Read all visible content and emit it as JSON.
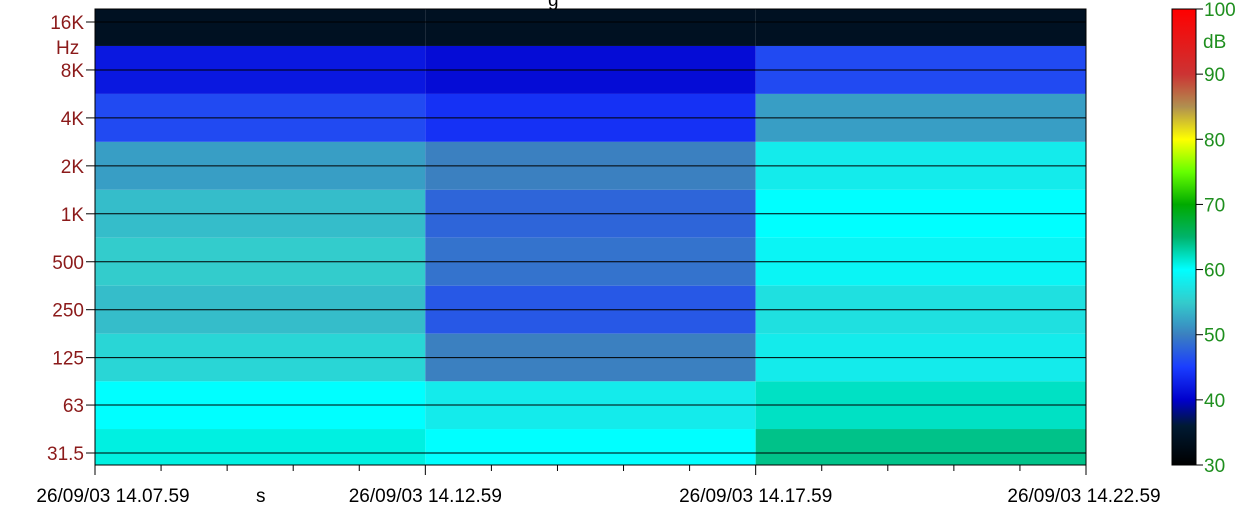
{
  "chart_data": {
    "type": "heatmap",
    "title": "g",
    "y_axis": {
      "unit_label": "Hz",
      "tick_labels": [
        "16K",
        "8K",
        "4K",
        "2K",
        "1K",
        "500",
        "250",
        "125",
        "63",
        "31.5"
      ],
      "tick_values_hz": [
        16000,
        8000,
        4000,
        2000,
        1000,
        500,
        250,
        125,
        63,
        31.5
      ],
      "scale": "log"
    },
    "x_axis": {
      "tick_labels": [
        "26/09/03 14.07.59",
        "26/09/03 14.12.59",
        "26/09/03 14.17.59",
        "26/09/03 14.22.59"
      ],
      "minor_label": "s",
      "range": [
        "26/09/03 14.07.59",
        "26/09/03 14.22.59"
      ]
    },
    "colorbar": {
      "unit": "dB",
      "range": [
        30,
        100
      ],
      "tick_labels": [
        "100",
        "90",
        "80",
        "70",
        "60",
        "50",
        "40",
        "30"
      ],
      "tick_values": [
        100,
        90,
        80,
        70,
        60,
        50,
        40,
        30
      ],
      "stops": [
        {
          "value": 30,
          "color": "#000000"
        },
        {
          "value": 36,
          "color": "#001a33"
        },
        {
          "value": 40,
          "color": "#0000cc"
        },
        {
          "value": 45,
          "color": "#1a3dff"
        },
        {
          "value": 50,
          "color": "#3b80c0"
        },
        {
          "value": 55,
          "color": "#33cccc"
        },
        {
          "value": 60,
          "color": "#00ffff"
        },
        {
          "value": 65,
          "color": "#00b36b"
        },
        {
          "value": 70,
          "color": "#00aa00"
        },
        {
          "value": 75,
          "color": "#66ff00"
        },
        {
          "value": 80,
          "color": "#ffff00"
        },
        {
          "value": 85,
          "color": "#b09050"
        },
        {
          "value": 90,
          "color": "#cc3333"
        },
        {
          "value": 100,
          "color": "#ff0000"
        }
      ]
    },
    "grid": true,
    "approx_levels_db_by_band_segment": {
      "bands": [
        "16K",
        "8K",
        "4K",
        "2K",
        "1K",
        "500",
        "250",
        "125",
        "63",
        "31.5"
      ],
      "segments": [
        "14.07.59-14.12.59",
        "14.12.59-14.17.59",
        "14.17.59-14.22.59"
      ],
      "values": [
        [
          34,
          34,
          34
        ],
        [
          42,
          41,
          46
        ],
        [
          46,
          44,
          52
        ],
        [
          52,
          50,
          58
        ],
        [
          54,
          48,
          60
        ],
        [
          55,
          49,
          59
        ],
        [
          54,
          47,
          57
        ],
        [
          56,
          50,
          58
        ],
        [
          60,
          58,
          62
        ],
        [
          61,
          60,
          64
        ]
      ]
    }
  }
}
